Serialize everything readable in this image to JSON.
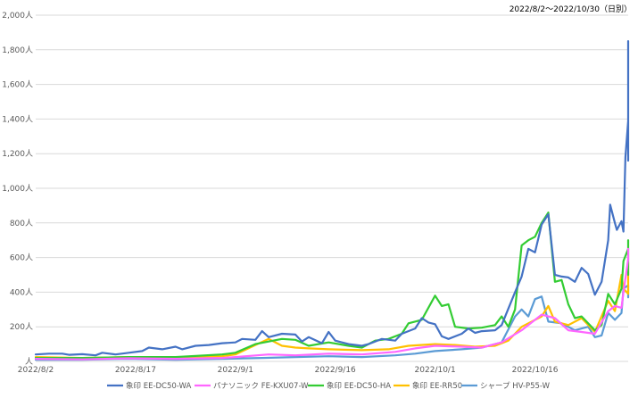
{
  "chart_data": {
    "type": "line",
    "date_range": "2022/8/2～2022/10/30（日別）",
    "ylim": [
      0,
      2000
    ],
    "yticks": [
      {
        "v": 0,
        "label": "人"
      },
      {
        "v": 200,
        "label": "200人"
      },
      {
        "v": 400,
        "label": "400人"
      },
      {
        "v": 600,
        "label": "600人"
      },
      {
        "v": 800,
        "label": "800人"
      },
      {
        "v": 1000,
        "label": "1,000人"
      },
      {
        "v": 1200,
        "label": "1,200人"
      },
      {
        "v": 1400,
        "label": "1,400人"
      },
      {
        "v": 1600,
        "label": "1,600人"
      },
      {
        "v": 1800,
        "label": "1,800人"
      },
      {
        "v": 2000,
        "label": "2,000人"
      }
    ],
    "xticks": [
      {
        "date": "2022-08-02",
        "label": "2022/8/2"
      },
      {
        "date": "2022-08-17",
        "label": "2022/8/17"
      },
      {
        "date": "2022-09-01",
        "label": "2022/9/1"
      },
      {
        "date": "2022-09-16",
        "label": "2022/9/16"
      },
      {
        "date": "2022-10-01",
        "label": "2022/10/1"
      },
      {
        "date": "2022-10-16",
        "label": "2022/10/16"
      }
    ],
    "x_start": "2022-08-02",
    "x_end": "2022-10-30",
    "grid": true,
    "legend_position": "bottom",
    "series": [
      {
        "name": "象印 EE-DC50-WA",
        "color": "#4472c4",
        "points": [
          [
            "2022-08-02",
            40
          ],
          [
            "2022-08-04",
            45
          ],
          [
            "2022-08-06",
            45
          ],
          [
            "2022-08-07",
            38
          ],
          [
            "2022-08-09",
            42
          ],
          [
            "2022-08-11",
            35
          ],
          [
            "2022-08-12",
            50
          ],
          [
            "2022-08-14",
            40
          ],
          [
            "2022-08-16",
            50
          ],
          [
            "2022-08-18",
            60
          ],
          [
            "2022-08-19",
            80
          ],
          [
            "2022-08-21",
            70
          ],
          [
            "2022-08-23",
            85
          ],
          [
            "2022-08-24",
            70
          ],
          [
            "2022-08-26",
            90
          ],
          [
            "2022-08-28",
            95
          ],
          [
            "2022-08-30",
            105
          ],
          [
            "2022-09-01",
            110
          ],
          [
            "2022-09-02",
            130
          ],
          [
            "2022-09-04",
            125
          ],
          [
            "2022-09-05",
            175
          ],
          [
            "2022-09-06",
            140
          ],
          [
            "2022-09-08",
            160
          ],
          [
            "2022-09-10",
            155
          ],
          [
            "2022-09-11",
            115
          ],
          [
            "2022-09-12",
            140
          ],
          [
            "2022-09-14",
            105
          ],
          [
            "2022-09-15",
            170
          ],
          [
            "2022-09-16",
            120
          ],
          [
            "2022-09-18",
            100
          ],
          [
            "2022-09-20",
            90
          ],
          [
            "2022-09-21",
            100
          ],
          [
            "2022-09-23",
            130
          ],
          [
            "2022-09-25",
            120
          ],
          [
            "2022-09-26",
            160
          ],
          [
            "2022-09-28",
            190
          ],
          [
            "2022-09-29",
            250
          ],
          [
            "2022-09-30",
            225
          ],
          [
            "2022-10-01",
            215
          ],
          [
            "2022-10-02",
            145
          ],
          [
            "2022-10-03",
            130
          ],
          [
            "2022-10-05",
            160
          ],
          [
            "2022-10-06",
            190
          ],
          [
            "2022-10-07",
            165
          ],
          [
            "2022-10-08",
            175
          ],
          [
            "2022-10-10",
            180
          ],
          [
            "2022-10-11",
            210
          ],
          [
            "2022-10-13",
            400
          ],
          [
            "2022-10-14",
            490
          ],
          [
            "2022-10-15",
            650
          ],
          [
            "2022-10-16",
            630
          ],
          [
            "2022-10-17",
            790
          ],
          [
            "2022-10-18",
            850
          ],
          [
            "2022-10-19",
            500
          ],
          [
            "2022-10-20",
            490
          ],
          [
            "2022-10-21",
            485
          ],
          [
            "2022-10-22",
            460
          ],
          [
            "2022-10-23",
            540
          ],
          [
            "2022-10-24",
            505
          ],
          [
            "2022-10-25",
            385
          ],
          [
            "2022-10-26",
            460
          ],
          [
            "2022-10-27",
            700
          ],
          [
            "2022-10-27",
            905
          ],
          [
            "2022-10-28",
            800
          ],
          [
            "2022-10-28",
            760
          ],
          [
            "2022-10-29",
            810
          ],
          [
            "2022-10-29",
            750
          ],
          [
            "2022-10-29",
            1180
          ],
          [
            "2022-10-30",
            1390
          ],
          [
            "2022-10-30",
            1375
          ],
          [
            "2022-10-30",
            1160
          ],
          [
            "2022-10-30",
            1560
          ],
          [
            "2022-10-30",
            1850
          ]
        ]
      },
      {
        "name": "パナソニック FE-KXU07-W",
        "color": "#ff66ff",
        "points": [
          [
            "2022-08-02",
            15
          ],
          [
            "2022-08-09",
            12
          ],
          [
            "2022-08-16",
            18
          ],
          [
            "2022-08-23",
            15
          ],
          [
            "2022-08-30",
            20
          ],
          [
            "2022-09-01",
            25
          ],
          [
            "2022-09-06",
            40
          ],
          [
            "2022-09-10",
            35
          ],
          [
            "2022-09-15",
            45
          ],
          [
            "2022-09-20",
            40
          ],
          [
            "2022-09-25",
            55
          ],
          [
            "2022-09-28",
            75
          ],
          [
            "2022-10-01",
            90
          ],
          [
            "2022-10-05",
            85
          ],
          [
            "2022-10-08",
            80
          ],
          [
            "2022-10-11",
            110
          ],
          [
            "2022-10-14",
            180
          ],
          [
            "2022-10-17",
            270
          ],
          [
            "2022-10-19",
            250
          ],
          [
            "2022-10-21",
            180
          ],
          [
            "2022-10-23",
            170
          ],
          [
            "2022-10-25",
            160
          ],
          [
            "2022-10-27",
            290
          ],
          [
            "2022-10-28",
            320
          ],
          [
            "2022-10-29",
            310
          ],
          [
            "2022-10-29",
            400
          ],
          [
            "2022-10-30",
            590
          ],
          [
            "2022-10-30",
            650
          ]
        ]
      },
      {
        "name": "象印 EE-DC50-HA",
        "color": "#33cc33",
        "points": [
          [
            "2022-08-02",
            20
          ],
          [
            "2022-08-09",
            20
          ],
          [
            "2022-08-16",
            25
          ],
          [
            "2022-08-23",
            25
          ],
          [
            "2022-08-30",
            40
          ],
          [
            "2022-09-01",
            50
          ],
          [
            "2022-09-04",
            100
          ],
          [
            "2022-09-06",
            115
          ],
          [
            "2022-09-08",
            130
          ],
          [
            "2022-09-10",
            125
          ],
          [
            "2022-09-12",
            90
          ],
          [
            "2022-09-15",
            110
          ],
          [
            "2022-09-18",
            90
          ],
          [
            "2022-09-20",
            80
          ],
          [
            "2022-09-22",
            120
          ],
          [
            "2022-09-24",
            130
          ],
          [
            "2022-09-26",
            160
          ],
          [
            "2022-09-27",
            220
          ],
          [
            "2022-09-29",
            240
          ],
          [
            "2022-10-01",
            380
          ],
          [
            "2022-10-02",
            320
          ],
          [
            "2022-10-03",
            330
          ],
          [
            "2022-10-04",
            200
          ],
          [
            "2022-10-06",
            190
          ],
          [
            "2022-10-08",
            195
          ],
          [
            "2022-10-10",
            210
          ],
          [
            "2022-10-11",
            260
          ],
          [
            "2022-10-12",
            200
          ],
          [
            "2022-10-13",
            300
          ],
          [
            "2022-10-14",
            670
          ],
          [
            "2022-10-15",
            700
          ],
          [
            "2022-10-16",
            720
          ],
          [
            "2022-10-17",
            800
          ],
          [
            "2022-10-18",
            860
          ],
          [
            "2022-10-19",
            460
          ],
          [
            "2022-10-20",
            470
          ],
          [
            "2022-10-21",
            330
          ],
          [
            "2022-10-22",
            250
          ],
          [
            "2022-10-23",
            260
          ],
          [
            "2022-10-25",
            180
          ],
          [
            "2022-10-26",
            210
          ],
          [
            "2022-10-27",
            390
          ],
          [
            "2022-10-28",
            330
          ],
          [
            "2022-10-29",
            420
          ],
          [
            "2022-10-29",
            580
          ],
          [
            "2022-10-30",
            650
          ],
          [
            "2022-10-30",
            500
          ],
          [
            "2022-10-30",
            700
          ]
        ]
      },
      {
        "name": "象印 EE-RR50",
        "color": "#ffc000",
        "points": [
          [
            "2022-08-02",
            25
          ],
          [
            "2022-08-09",
            20
          ],
          [
            "2022-08-16",
            25
          ],
          [
            "2022-08-23",
            20
          ],
          [
            "2022-08-30",
            30
          ],
          [
            "2022-09-01",
            40
          ],
          [
            "2022-09-04",
            95
          ],
          [
            "2022-09-06",
            130
          ],
          [
            "2022-09-08",
            90
          ],
          [
            "2022-09-10",
            80
          ],
          [
            "2022-09-12",
            75
          ],
          [
            "2022-09-15",
            70
          ],
          [
            "2022-09-20",
            65
          ],
          [
            "2022-09-24",
            70
          ],
          [
            "2022-09-27",
            90
          ],
          [
            "2022-10-01",
            100
          ],
          [
            "2022-10-04",
            95
          ],
          [
            "2022-10-07",
            85
          ],
          [
            "2022-10-10",
            90
          ],
          [
            "2022-10-12",
            120
          ],
          [
            "2022-10-14",
            200
          ],
          [
            "2022-10-17",
            260
          ],
          [
            "2022-10-18",
            320
          ],
          [
            "2022-10-19",
            230
          ],
          [
            "2022-10-21",
            210
          ],
          [
            "2022-10-23",
            250
          ],
          [
            "2022-10-25",
            170
          ],
          [
            "2022-10-27",
            350
          ],
          [
            "2022-10-28",
            290
          ],
          [
            "2022-10-29",
            500
          ],
          [
            "2022-10-29",
            420
          ],
          [
            "2022-10-30",
            390
          ],
          [
            "2022-10-30",
            570
          ]
        ]
      },
      {
        "name": "シャープ HV-P55-W",
        "color": "#5b9bd5",
        "points": [
          [
            "2022-08-02",
            10
          ],
          [
            "2022-08-09",
            10
          ],
          [
            "2022-08-16",
            15
          ],
          [
            "2022-08-23",
            10
          ],
          [
            "2022-08-30",
            15
          ],
          [
            "2022-09-05",
            20
          ],
          [
            "2022-09-10",
            25
          ],
          [
            "2022-09-15",
            30
          ],
          [
            "2022-09-20",
            25
          ],
          [
            "2022-09-25",
            35
          ],
          [
            "2022-09-28",
            45
          ],
          [
            "2022-10-01",
            60
          ],
          [
            "2022-10-05",
            70
          ],
          [
            "2022-10-08",
            80
          ],
          [
            "2022-10-11",
            110
          ],
          [
            "2022-10-13",
            260
          ],
          [
            "2022-10-14",
            300
          ],
          [
            "2022-10-15",
            260
          ],
          [
            "2022-10-16",
            360
          ],
          [
            "2022-10-17",
            375
          ],
          [
            "2022-10-18",
            230
          ],
          [
            "2022-10-20",
            220
          ],
          [
            "2022-10-22",
            180
          ],
          [
            "2022-10-24",
            200
          ],
          [
            "2022-10-25",
            140
          ],
          [
            "2022-10-26",
            150
          ],
          [
            "2022-10-27",
            280
          ],
          [
            "2022-10-28",
            240
          ],
          [
            "2022-10-29",
            280
          ],
          [
            "2022-10-29",
            420
          ],
          [
            "2022-10-30",
            440
          ],
          [
            "2022-10-30",
            370
          ],
          [
            "2022-10-30",
            440
          ]
        ]
      }
    ]
  }
}
